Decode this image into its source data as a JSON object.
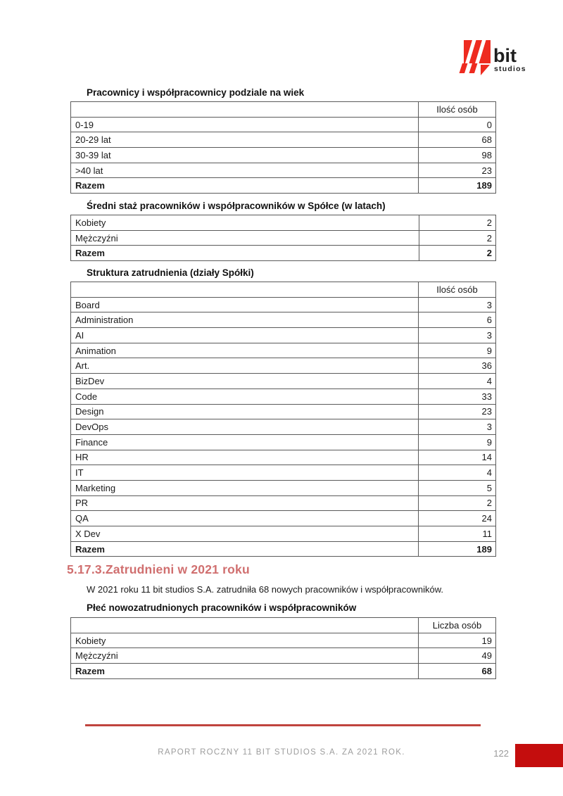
{
  "logo": {
    "name": "11 bit studios",
    "word_main": "bit",
    "word_sub": "studios"
  },
  "tables": [
    {
      "title": "Pracownicy i współpracownicy podziale na wiek",
      "header_label": "Ilość osób",
      "rows": [
        {
          "label": "0-19",
          "value": "0",
          "bold": false
        },
        {
          "label": "20-29 lat",
          "value": "68",
          "bold": false
        },
        {
          "label": "30-39 lat",
          "value": "98",
          "bold": false
        },
        {
          "label": ">40 lat",
          "value": "23",
          "bold": false
        },
        {
          "label": "Razem",
          "value": "189",
          "bold": true
        }
      ]
    },
    {
      "title": "Średni staż pracowników i współpracowników w Spółce (w latach)",
      "header_label": null,
      "rows": [
        {
          "label": "Kobiety",
          "value": "2",
          "bold": false
        },
        {
          "label": "Mężczyźni",
          "value": "2",
          "bold": false
        },
        {
          "label": "Razem",
          "value": "2",
          "bold": true
        }
      ]
    },
    {
      "title": "Struktura zatrudnienia (działy Spółki)",
      "header_label": "Ilość osób",
      "rows": [
        {
          "label": "Board",
          "value": "3",
          "bold": false
        },
        {
          "label": "Administration",
          "value": "6",
          "bold": false
        },
        {
          "label": "AI",
          "value": "3",
          "bold": false
        },
        {
          "label": "Animation",
          "value": "9",
          "bold": false
        },
        {
          "label": "Art.",
          "value": "36",
          "bold": false
        },
        {
          "label": "BizDev",
          "value": "4",
          "bold": false
        },
        {
          "label": "Code",
          "value": "33",
          "bold": false
        },
        {
          "label": "Design",
          "value": "23",
          "bold": false
        },
        {
          "label": "DevOps",
          "value": "3",
          "bold": false
        },
        {
          "label": "Finance",
          "value": "9",
          "bold": false
        },
        {
          "label": "HR",
          "value": "14",
          "bold": false
        },
        {
          "label": "IT",
          "value": "4",
          "bold": false
        },
        {
          "label": "Marketing",
          "value": "5",
          "bold": false
        },
        {
          "label": "PR",
          "value": "2",
          "bold": false
        },
        {
          "label": "QA",
          "value": "24",
          "bold": false
        },
        {
          "label": "X Dev",
          "value": "11",
          "bold": false
        },
        {
          "label": "Razem",
          "value": "189",
          "bold": true
        }
      ]
    },
    {
      "title": "Płeć nowozatrudnionych pracowników i współpracowników",
      "header_label": "Liczba osób",
      "rows": [
        {
          "label": "Kobiety",
          "value": "19",
          "bold": false
        },
        {
          "label": "Mężczyźni",
          "value": "49",
          "bold": false
        },
        {
          "label": "Razem",
          "value": "68",
          "bold": true
        }
      ]
    }
  ],
  "section_heading": "5.17.3.Zatrudnieni w 2021 roku",
  "intro_paragraph": "W 2021 roku 11 bit studios S.A. zatrudniła 68 nowych pracowników i współpracowników.",
  "footer": {
    "report_title": "RAPORT ROCZNY 11 BIT STUDIOS S.A. ZA 2021 ROK.",
    "page_number": "122"
  },
  "colors": {
    "logo_red": "#EE2B20",
    "heading_salmon": "#D06F6F",
    "footer_line_red": "#C0443E",
    "page_box_red": "#C40D0D",
    "table_border_gray": "#5A5A5A",
    "footer_text_gray": "#9C9C9C"
  }
}
